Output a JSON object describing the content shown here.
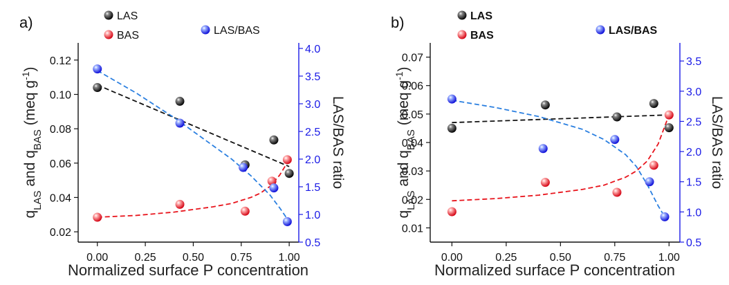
{
  "colors": {
    "las": "#111111",
    "bas": "#e8141c",
    "ratio": "#1414e6",
    "fit_las": "#111111",
    "fit_bas": "#e8141c",
    "fit_ratio": "#2a7fe0",
    "right_axis": "#1a1ae6"
  },
  "chart_data": [
    {
      "type": "scatter",
      "panel_label": "a)",
      "title": "",
      "xlabel": "Normalized surface P concentration",
      "ylabel_left": {
        "main": "q",
        "sub1": "LAS",
        "mid": " and q",
        "sub2": "BAS",
        "tail1": " (meq g",
        "sup": "-1",
        "tail2": ")"
      },
      "ylabel_right": "LAS/BAS ratio",
      "xlim": [
        -0.1,
        1.05
      ],
      "ylim_left": [
        0.014,
        0.13
      ],
      "ylim_right": [
        0.5,
        4.1
      ],
      "xticks": [
        0,
        0.25,
        0.5,
        0.75,
        1
      ],
      "xtick_labels": [
        "0.00",
        "0.25",
        "0.50",
        "0.75",
        "1.00"
      ],
      "yticks_left": [
        0.02,
        0.04,
        0.06,
        0.08,
        0.1,
        0.12
      ],
      "ytick_labels_left": [
        "0.02",
        "0.04",
        "0.06",
        "0.08",
        "0.10",
        "0.12"
      ],
      "yticks_right": [
        0.5,
        1,
        1.5,
        2,
        2.5,
        3,
        3.5,
        4
      ],
      "ytick_labels_right": [
        "0.5",
        "1.0",
        "1.5",
        "2.0",
        "2.5",
        "3.0",
        "3.5",
        "4.0"
      ],
      "legend": {
        "las": "LAS",
        "bas": "BAS",
        "ratio": "LAS/BAS"
      },
      "series": [
        {
          "name": "LAS",
          "axis": "left",
          "x": [
            0,
            0.43,
            0.77,
            0.92,
            1.0
          ],
          "y": [
            0.104,
            0.096,
            0.059,
            0.0735,
            0.054
          ]
        },
        {
          "name": "BAS",
          "axis": "left",
          "x": [
            0,
            0.43,
            0.77,
            0.91,
            0.99
          ],
          "y": [
            0.0285,
            0.036,
            0.032,
            0.0495,
            0.062
          ]
        },
        {
          "name": "LAS/BAS",
          "axis": "right",
          "x": [
            0,
            0.43,
            0.76,
            0.92,
            0.99
          ],
          "y": [
            3.63,
            2.65,
            1.85,
            1.48,
            0.87
          ]
        }
      ],
      "fits": [
        {
          "axis": "left",
          "color_key": "fit_las",
          "x": [
            0,
            0.2,
            0.4,
            0.6,
            0.8,
            1.0
          ],
          "y": [
            0.1055,
            0.096,
            0.0865,
            0.077,
            0.0675,
            0.058
          ]
        },
        {
          "axis": "left",
          "color_key": "fit_bas",
          "x": [
            0,
            0.2,
            0.4,
            0.6,
            0.7,
            0.8,
            0.85,
            0.9,
            0.95,
            1.0
          ],
          "y": [
            0.0285,
            0.0295,
            0.0315,
            0.0345,
            0.0365,
            0.04,
            0.0425,
            0.0465,
            0.053,
            0.062
          ]
        },
        {
          "axis": "right",
          "color_key": "fit_ratio",
          "x": [
            0,
            0.2,
            0.4,
            0.6,
            0.7,
            0.8,
            0.9,
            0.95,
            1.0
          ],
          "y": [
            3.6,
            3.2,
            2.75,
            2.25,
            2.0,
            1.7,
            1.35,
            1.12,
            0.87
          ]
        }
      ]
    },
    {
      "type": "scatter",
      "panel_label": "b)",
      "title": "",
      "xlabel": "Normalized surface P concentration",
      "ylabel_left": {
        "main": "q",
        "sub1": "LAS",
        "mid": " and q",
        "sub2": "BAS",
        "tail1": " (meq g",
        "sup": "-1",
        "tail2": ")"
      },
      "ylabel_right": "LAS/BAS ratio",
      "xlim": [
        -0.1,
        1.05
      ],
      "ylim_left": [
        0.005,
        0.075
      ],
      "ylim_right": [
        0.5,
        3.8
      ],
      "xticks": [
        0,
        0.25,
        0.5,
        0.75,
        1
      ],
      "xtick_labels": [
        "0.00",
        "0.25",
        "0.50",
        "0.75",
        "1.00"
      ],
      "yticks_left": [
        0.01,
        0.02,
        0.03,
        0.04,
        0.05,
        0.06,
        0.07
      ],
      "ytick_labels_left": [
        "0.01",
        "0.02",
        "0.03",
        "0.04",
        "0.05",
        "0.06",
        "0.07"
      ],
      "yticks_right": [
        0.5,
        1,
        1.5,
        2,
        2.5,
        3,
        3.5
      ],
      "ytick_labels_right": [
        "0.5",
        "1.0",
        "1.5",
        "2.0",
        "2.5",
        "3.0",
        "3.5"
      ],
      "legend": {
        "las": "LAS",
        "bas": "BAS",
        "ratio": "LAS/BAS"
      },
      "series": [
        {
          "name": "LAS",
          "axis": "left",
          "x": [
            0,
            0.43,
            0.76,
            0.93,
            1.0
          ],
          "y": [
            0.045,
            0.0532,
            0.049,
            0.0537,
            0.0452
          ]
        },
        {
          "name": "BAS",
          "axis": "left",
          "x": [
            0,
            0.43,
            0.76,
            0.93,
            1.0
          ],
          "y": [
            0.0157,
            0.026,
            0.0225,
            0.032,
            0.0497
          ]
        },
        {
          "name": "LAS/BAS",
          "axis": "right",
          "x": [
            0,
            0.42,
            0.75,
            0.91,
            0.98
          ],
          "y": [
            2.87,
            2.05,
            2.2,
            1.5,
            0.92
          ]
        }
      ],
      "fits": [
        {
          "axis": "left",
          "color_key": "fit_las",
          "x": [
            0,
            1.0
          ],
          "y": [
            0.047,
            0.0497
          ]
        },
        {
          "axis": "left",
          "color_key": "fit_bas",
          "x": [
            0,
            0.2,
            0.4,
            0.6,
            0.7,
            0.8,
            0.85,
            0.9,
            0.95,
            1.0
          ],
          "y": [
            0.0195,
            0.0203,
            0.0215,
            0.0235,
            0.025,
            0.0278,
            0.03,
            0.0335,
            0.0395,
            0.0497
          ]
        },
        {
          "axis": "right",
          "color_key": "fit_ratio",
          "x": [
            0,
            0.2,
            0.4,
            0.6,
            0.7,
            0.8,
            0.85,
            0.9,
            0.95,
            0.98
          ],
          "y": [
            2.85,
            2.73,
            2.58,
            2.37,
            2.2,
            1.95,
            1.75,
            1.45,
            1.1,
            0.92
          ]
        }
      ]
    }
  ]
}
